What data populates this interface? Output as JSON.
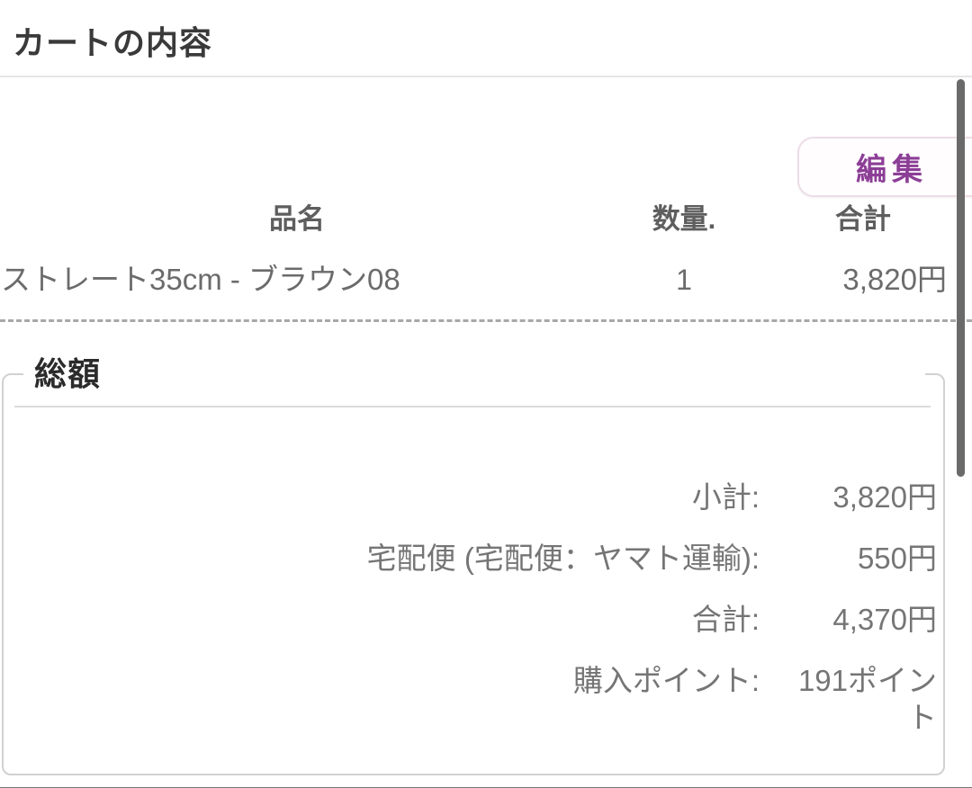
{
  "page": {
    "title": "カートの内容"
  },
  "toolbar": {
    "edit_button": "編集"
  },
  "cart": {
    "headers": {
      "name": "品名",
      "quantity": "数量.",
      "total": "合計"
    },
    "items": [
      {
        "name": "ストレート35cm - ブラウン08",
        "quantity": "1",
        "total": "3,820円"
      }
    ]
  },
  "summary": {
    "legend": "総額",
    "rows": [
      {
        "label": "小計:",
        "value": "3,820円"
      },
      {
        "label": "宅配便 (宅配便：ヤマト運輸):",
        "value": "550円"
      },
      {
        "label": "合計:",
        "value": "4,370円"
      },
      {
        "label": "購入ポイント:",
        "value": "191ポイント"
      }
    ]
  },
  "colors": {
    "accent_purple": "#8c3e96"
  }
}
